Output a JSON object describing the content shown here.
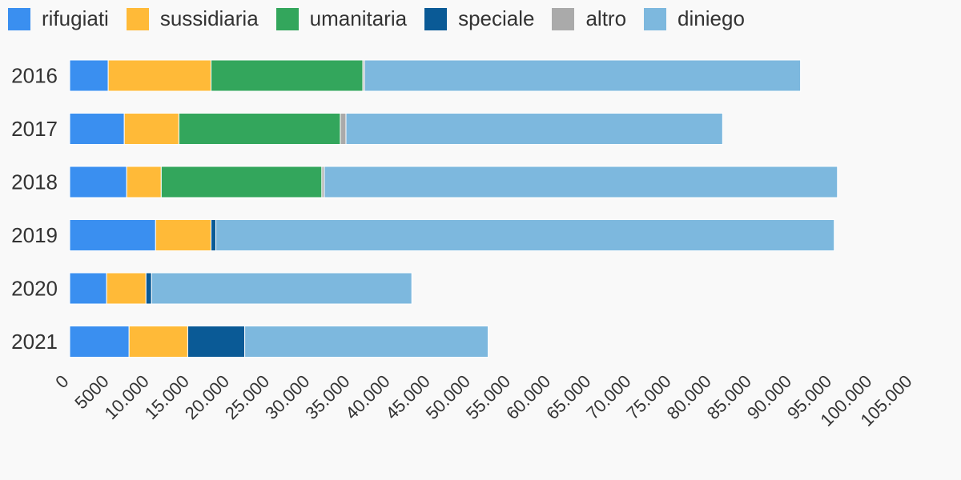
{
  "chart_data": {
    "type": "bar",
    "orientation": "horizontal",
    "stacked": true,
    "categories": [
      "2016",
      "2017",
      "2018",
      "2019",
      "2020",
      "2021"
    ],
    "series": [
      {
        "name": "rifugiati",
        "color": "#3a8ff0",
        "values": [
          4800,
          6800,
          7100,
          10700,
          4600,
          7400
        ]
      },
      {
        "name": "sussidiaria",
        "color": "#ffba38",
        "values": [
          12800,
          6800,
          4300,
          6900,
          4900,
          7300
        ]
      },
      {
        "name": "umanitaria",
        "color": "#33a65c",
        "values": [
          18900,
          20100,
          20000,
          0,
          0,
          0
        ]
      },
      {
        "name": "speciale",
        "color": "#0a5a96",
        "values": [
          0,
          0,
          0,
          600,
          700,
          7100
        ]
      },
      {
        "name": "altro",
        "color": "#aaaaaa",
        "values": [
          200,
          700,
          300,
          0,
          0,
          0
        ]
      },
      {
        "name": "diniego",
        "color": "#7db8de",
        "values": [
          54300,
          46900,
          63900,
          77000,
          32400,
          30300
        ]
      }
    ],
    "xlim": [
      0,
      105000
    ],
    "xticks": [
      "0",
      "5000",
      "10.000",
      "15.000",
      "20.000",
      "25.000",
      "30.000",
      "35.000",
      "40.000",
      "45.000",
      "50.000",
      "55.000",
      "60.000",
      "65.000",
      "70.000",
      "75.000",
      "80.000",
      "85.000",
      "90.000",
      "95.000",
      "100.000",
      "105.000"
    ],
    "grid": false,
    "legend_position": "top-left"
  }
}
